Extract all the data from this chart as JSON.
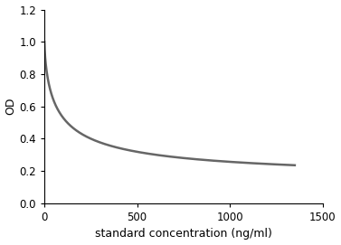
{
  "xlabel": "standard concentration (ng/ml)",
  "ylabel": "OD",
  "xlim": [
    0,
    1500
  ],
  "ylim": [
    0,
    1.2
  ],
  "xticks": [
    0,
    500,
    1000,
    1500
  ],
  "yticks": [
    0,
    0.2,
    0.4,
    0.6,
    0.8,
    1.0,
    1.2
  ],
  "line_color": "#666666",
  "line_width": 1.8,
  "background_color": "#ffffff",
  "curve_params": {
    "A": 0.87,
    "B": 0.13,
    "k": 0.022
  },
  "xlabel_fontsize": 9,
  "ylabel_fontsize": 9,
  "tick_fontsize": 8.5
}
